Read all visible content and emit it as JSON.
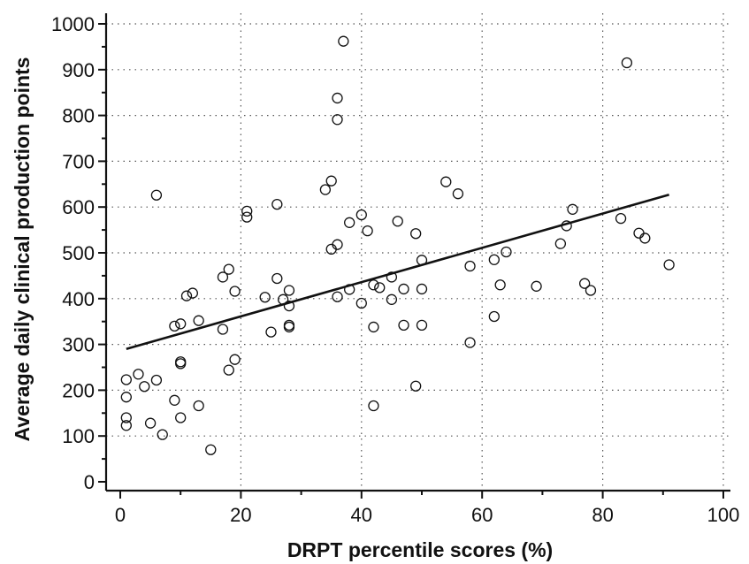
{
  "chart_data": {
    "type": "scatter",
    "xlabel": "DRPT percentile scores (%)",
    "ylabel": "Average daily clinical production points",
    "xlim": [
      0,
      100
    ],
    "ylim": [
      0,
      1000
    ],
    "x_ticks": [
      "0",
      "20",
      "40",
      "60",
      "80",
      "100"
    ],
    "y_ticks": [
      "0",
      "100",
      "200",
      "300",
      "400",
      "500",
      "600",
      "700",
      "800",
      "900",
      "1000"
    ],
    "grid": true,
    "colors": {
      "points": "#111111",
      "fit_line": "#111111",
      "grid": "#555555"
    },
    "series": [
      {
        "points": [
          [
            1,
            123
          ],
          [
            1,
            140
          ],
          [
            1,
            185
          ],
          [
            1,
            223
          ],
          [
            3,
            235
          ],
          [
            4,
            208
          ],
          [
            5,
            128
          ],
          [
            6,
            222
          ],
          [
            6,
            626
          ],
          [
            7,
            103
          ],
          [
            9,
            178
          ],
          [
            9,
            340
          ],
          [
            10,
            140
          ],
          [
            10,
            258
          ],
          [
            10,
            262
          ],
          [
            10,
            345
          ],
          [
            11,
            406
          ],
          [
            12,
            412
          ],
          [
            13,
            166
          ],
          [
            13,
            352
          ],
          [
            15,
            70
          ],
          [
            17,
            333
          ],
          [
            17,
            447
          ],
          [
            18,
            244
          ],
          [
            18,
            464
          ],
          [
            19,
            267
          ],
          [
            19,
            416
          ],
          [
            21,
            578
          ],
          [
            21,
            591
          ],
          [
            24,
            403
          ],
          [
            25,
            327
          ],
          [
            26,
            444
          ],
          [
            26,
            606
          ],
          [
            27,
            398
          ],
          [
            28,
            338
          ],
          [
            28,
            342
          ],
          [
            28,
            384
          ],
          [
            28,
            418
          ],
          [
            34,
            638
          ],
          [
            35,
            508
          ],
          [
            35,
            657
          ],
          [
            36,
            404
          ],
          [
            36,
            518
          ],
          [
            36,
            791
          ],
          [
            36,
            838
          ],
          [
            37,
            962
          ],
          [
            38,
            420
          ],
          [
            38,
            566
          ],
          [
            40,
            390
          ],
          [
            40,
            583
          ],
          [
            41,
            548
          ],
          [
            42,
            166
          ],
          [
            42,
            338
          ],
          [
            42,
            430
          ],
          [
            43,
            424
          ],
          [
            45,
            398
          ],
          [
            45,
            447
          ],
          [
            46,
            569
          ],
          [
            47,
            342
          ],
          [
            47,
            421
          ],
          [
            49,
            209
          ],
          [
            49,
            542
          ],
          [
            50,
            342
          ],
          [
            50,
            421
          ],
          [
            50,
            484
          ],
          [
            54,
            655
          ],
          [
            56,
            629
          ],
          [
            58,
            304
          ],
          [
            58,
            471
          ],
          [
            62,
            361
          ],
          [
            62,
            485
          ],
          [
            63,
            430
          ],
          [
            64,
            502
          ],
          [
            69,
            427
          ],
          [
            73,
            520
          ],
          [
            74,
            559
          ],
          [
            75,
            595
          ],
          [
            77,
            433
          ],
          [
            78,
            418
          ],
          [
            83,
            575
          ],
          [
            84,
            915
          ],
          [
            86,
            543
          ],
          [
            87,
            532
          ],
          [
            91,
            474
          ]
        ]
      }
    ],
    "fit_line": {
      "x": [
        1,
        91
      ],
      "y": [
        290,
        627
      ]
    }
  }
}
